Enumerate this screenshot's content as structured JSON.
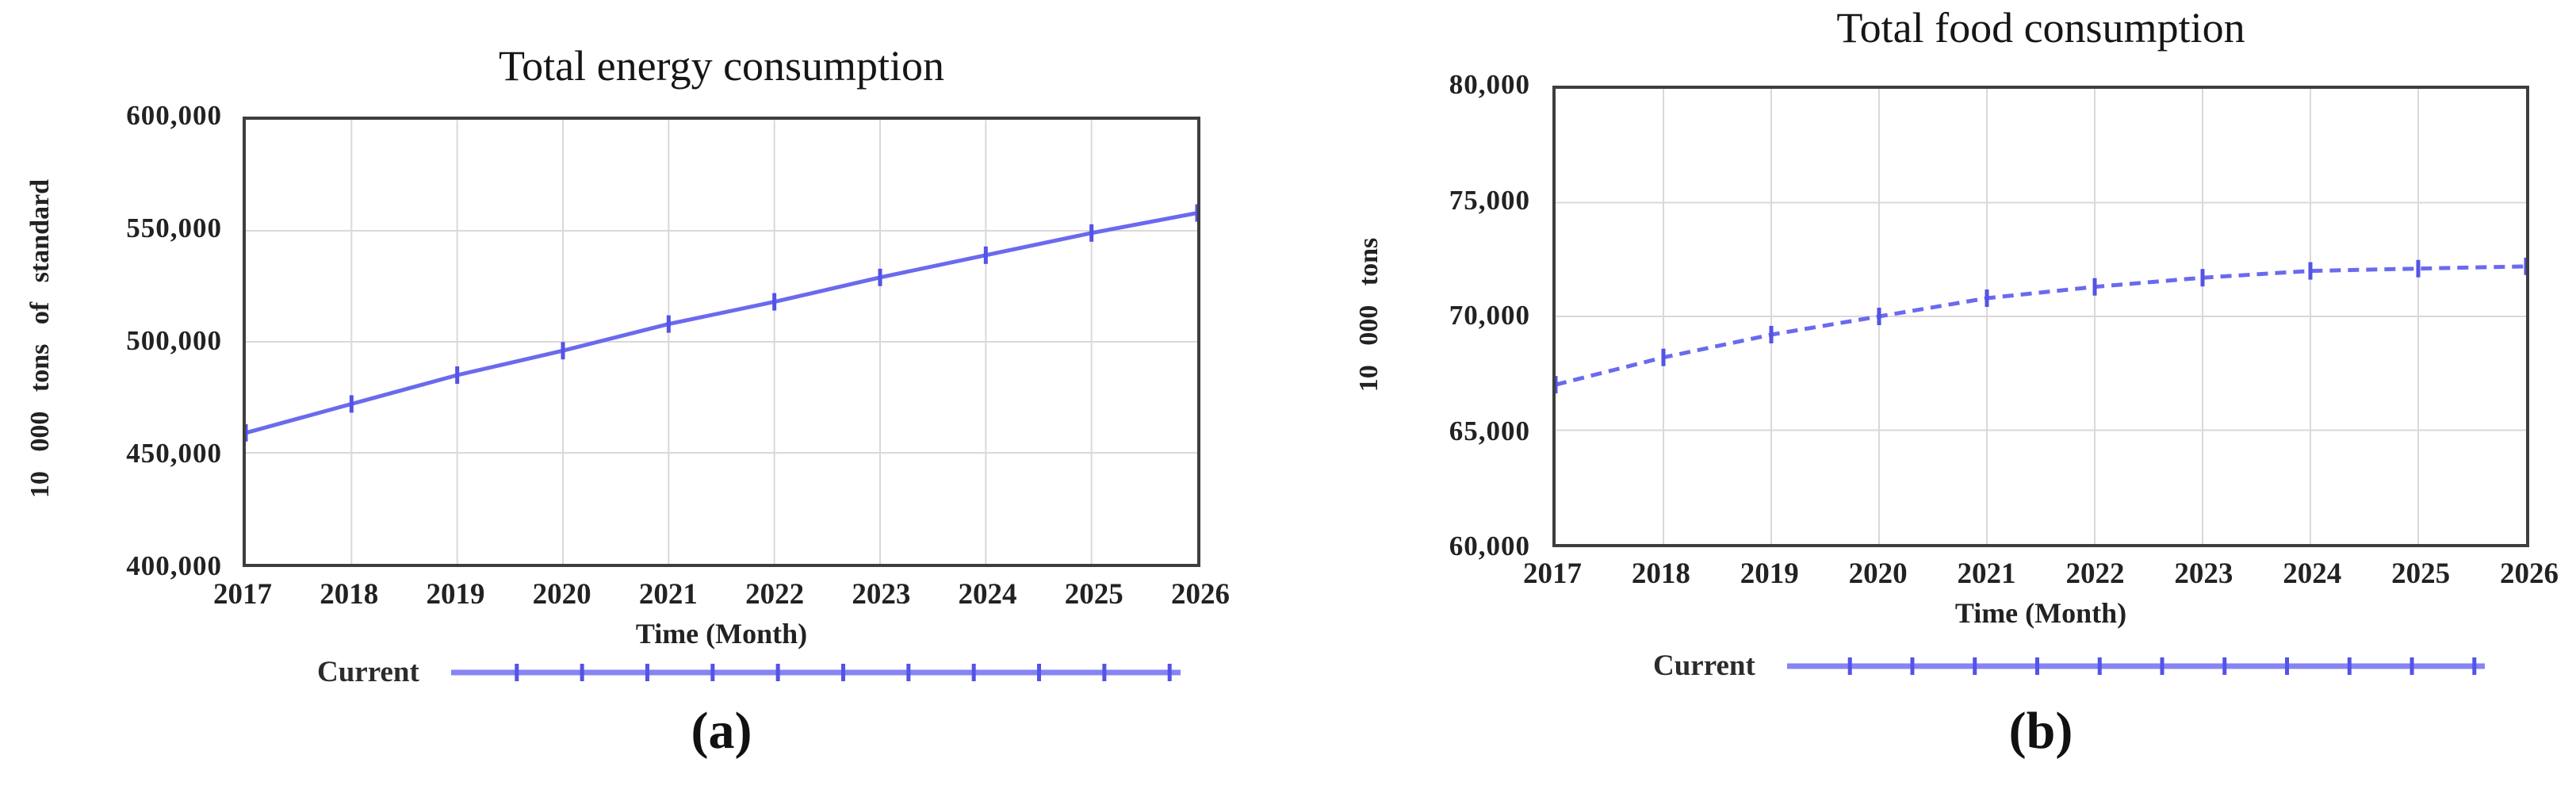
{
  "figure": {
    "panels": [
      {
        "caption": "(a)",
        "title": "Total energy consumption",
        "y_axis_title": "10 000 tons of standard",
        "x_axis_title": "Time (Month)",
        "legend_label": "Current"
      },
      {
        "caption": "(b)",
        "title": "Total food consumption",
        "y_axis_title": "10 000 tons",
        "x_axis_title": "Time (Month)",
        "legend_label": "Current"
      }
    ]
  },
  "chart_data": [
    {
      "type": "line",
      "title": "Total energy consumption",
      "xlabel": "Time (Month)",
      "ylabel": "10 000 tons of standard",
      "x": [
        2017,
        2018,
        2019,
        2020,
        2021,
        2022,
        2023,
        2024,
        2025,
        2026
      ],
      "xtick_labels": [
        "2017",
        "2018",
        "2019",
        "2020",
        "2021",
        "2022",
        "2023",
        "2024",
        "2025",
        "2026"
      ],
      "series": [
        {
          "name": "Current",
          "values": [
            459000,
            472000,
            485000,
            496000,
            508000,
            518000,
            529000,
            539000,
            549000,
            558000
          ]
        }
      ],
      "ylim": [
        400000,
        600000
      ],
      "yticks": [
        600000,
        550000,
        500000,
        450000,
        400000
      ],
      "ytick_labels": [
        "600,000",
        "550,000",
        "500,000",
        "450,000",
        "400,000"
      ],
      "grid": true,
      "legend_position": "bottom",
      "line_style": "solid",
      "line_color": "#6a6aee",
      "marker": "vertical-tick",
      "marker_color": "#5353e6"
    },
    {
      "type": "line",
      "title": "Total food consumption",
      "xlabel": "Time (Month)",
      "ylabel": "10 000 tons",
      "x": [
        2017,
        2018,
        2019,
        2020,
        2021,
        2022,
        2023,
        2024,
        2025,
        2026
      ],
      "xtick_labels": [
        "2017",
        "2018",
        "2019",
        "2020",
        "2021",
        "2022",
        "2023",
        "2024",
        "2025",
        "2026"
      ],
      "series": [
        {
          "name": "Current",
          "values": [
            67000,
            68200,
            69200,
            70000,
            70800,
            71300,
            71700,
            72000,
            72100,
            72200
          ]
        }
      ],
      "ylim": [
        60000,
        80000
      ],
      "yticks": [
        80000,
        75000,
        70000,
        65000,
        60000
      ],
      "ytick_labels": [
        "80,000",
        "75,000",
        "70,000",
        "65,000",
        "60,000"
      ],
      "grid": true,
      "legend_position": "bottom",
      "line_style": "dashed",
      "line_color": "#6a6aee",
      "marker": "vertical-tick",
      "marker_color": "#5353e6"
    }
  ],
  "colors": {
    "line": "#6a6aee",
    "legend_line": "#8585f2",
    "frame": "#3e3e3e",
    "grid": "#d9d9d9",
    "text": "#1b1b1b"
  }
}
